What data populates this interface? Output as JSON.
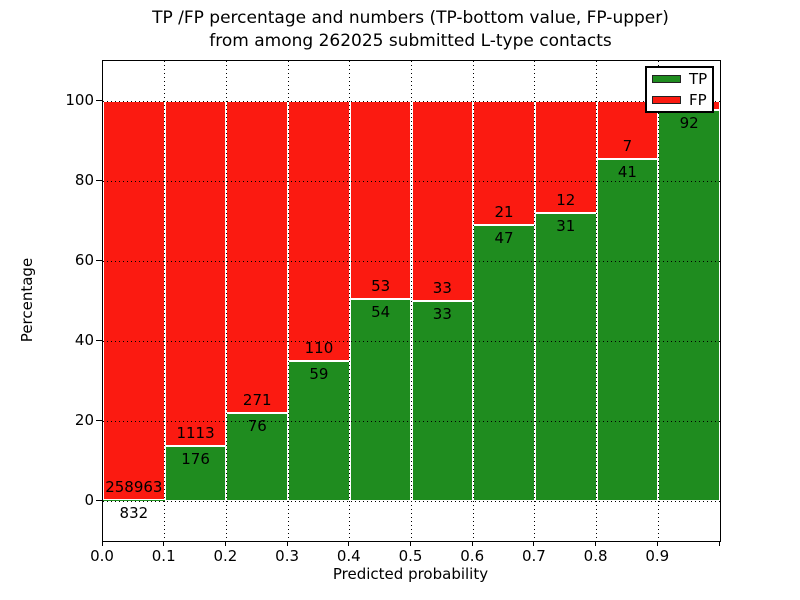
{
  "chart_data": {
    "type": "bar",
    "subtype": "stacked-percentage",
    "title_line1": "TP /FP percentage and numbers (TP-bottom value, FP-upper)",
    "title_line2": "from among 262025 submitted L-type contacts",
    "xlabel": "Predicted probability",
    "ylabel": "Percentage",
    "total_contacts": 262025,
    "xlim": [
      0.0,
      1.0
    ],
    "ylim": [
      -10,
      110
    ],
    "grid": "dotted black, both axes",
    "legend_position": "upper right",
    "x_tick_labels": [
      "0.0",
      "0.1",
      "0.2",
      "0.3",
      "0.4",
      "0.5",
      "0.6",
      "0.7",
      "0.8",
      "0.9"
    ],
    "y_tick_values": [
      0,
      20,
      40,
      60,
      80,
      100
    ],
    "y_tick_labels": [
      "0",
      "20",
      "40",
      "60",
      "80",
      "100"
    ],
    "colors": {
      "tp_green": "#1f8c1f",
      "fp_red": "#fb1a11",
      "bar_edge": "#ffffff"
    },
    "legend": [
      {
        "label": "TP",
        "color": "#1f8c1f"
      },
      {
        "label": "FP",
        "color": "#fb1a11"
      }
    ],
    "bars": [
      {
        "bin": "0.0-0.1",
        "tp_label": "832",
        "fp_label": "258963",
        "tp": 832,
        "fp": 258963,
        "tp_pct": 0.32
      },
      {
        "bin": "0.1-0.2",
        "tp_label": "176",
        "fp_label": "1113",
        "tp": 176,
        "fp": 1113,
        "tp_pct": 13.65
      },
      {
        "bin": "0.2-0.3",
        "tp_label": "76",
        "fp_label": "271",
        "tp": 76,
        "fp": 271,
        "tp_pct": 21.9
      },
      {
        "bin": "0.3-0.4",
        "tp_label": "59",
        "fp_label": "110",
        "tp": 59,
        "fp": 110,
        "tp_pct": 34.91
      },
      {
        "bin": "0.4-0.5",
        "tp_label": "54",
        "fp_label": "53",
        "tp": 54,
        "fp": 53,
        "tp_pct": 50.47
      },
      {
        "bin": "0.5-0.6",
        "tp_label": "33",
        "fp_label": "33",
        "tp": 33,
        "fp": 33,
        "tp_pct": 50.0
      },
      {
        "bin": "0.6-0.7",
        "tp_label": "47",
        "fp_label": "21",
        "tp": 47,
        "fp": 21,
        "tp_pct": 69.12
      },
      {
        "bin": "0.7-0.8",
        "tp_label": "31",
        "fp_label": "12",
        "tp": 31,
        "fp": 12,
        "tp_pct": 72.09
      },
      {
        "bin": "0.8-0.9",
        "tp_label": "41",
        "fp_label": "7",
        "tp": 41,
        "fp": 7,
        "tp_pct": 85.42
      },
      {
        "bin": "0.9-1.0",
        "tp_label": "92",
        "fp_label": "",
        "tp": 92,
        "fp": null,
        "tp_pct": 97.87
      }
    ]
  }
}
